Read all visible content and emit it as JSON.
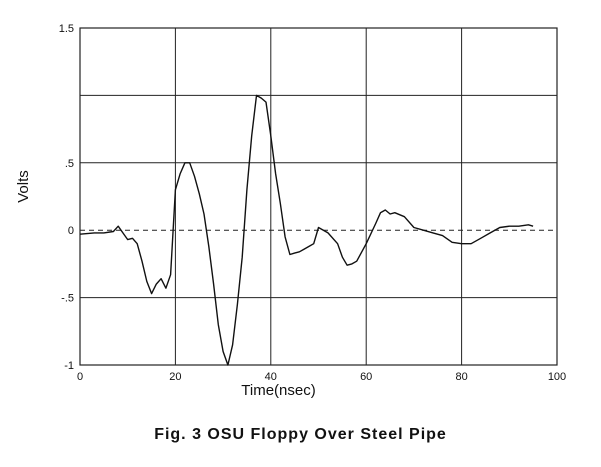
{
  "chart_data": {
    "type": "line",
    "title": "",
    "xlabel": "Time(nsec)",
    "ylabel": "Volts",
    "xlim": [
      0,
      100
    ],
    "ylim": [
      -1,
      1.5
    ],
    "x_ticks": [
      0,
      20,
      40,
      60,
      80,
      100
    ],
    "x_tick_labels": [
      "0",
      "20",
      "40",
      "60",
      "80",
      "100"
    ],
    "y_ticks": [
      -1,
      -0.5,
      0,
      0.5,
      1,
      1.5
    ],
    "y_tick_labels": [
      "-1",
      "-.5",
      "0",
      ".5",
      "",
      "1.5"
    ],
    "grid": true,
    "zero_line_dashed": true,
    "line_color": "#111111",
    "grid_color": "#222222",
    "series": [
      {
        "x": [
          0,
          3,
          5,
          7,
          8,
          9,
          10,
          11,
          12,
          13,
          14,
          15,
          16,
          17,
          18,
          19,
          20,
          21,
          22,
          23,
          24,
          25,
          26,
          27,
          28,
          29,
          30,
          31,
          32,
          33,
          34,
          35,
          36,
          37,
          38,
          39,
          40,
          41,
          42,
          43,
          44,
          45,
          46,
          47,
          48,
          49,
          50,
          52,
          54,
          55,
          56,
          57,
          58,
          60,
          62,
          63,
          64,
          65,
          66,
          68,
          70,
          72,
          74,
          76,
          78,
          80,
          82,
          84,
          86,
          88,
          90,
          92,
          94,
          95
        ],
        "y": [
          -0.03,
          -0.02,
          -0.02,
          -0.01,
          0.03,
          -0.02,
          -0.07,
          -0.06,
          -0.1,
          -0.23,
          -0.38,
          -0.47,
          -0.4,
          -0.36,
          -0.43,
          -0.33,
          0.3,
          0.42,
          0.5,
          0.5,
          0.4,
          0.27,
          0.12,
          -0.12,
          -0.4,
          -0.7,
          -0.9,
          -1.0,
          -0.85,
          -0.55,
          -0.2,
          0.3,
          0.7,
          1.0,
          0.98,
          0.95,
          0.7,
          0.42,
          0.2,
          -0.05,
          -0.18,
          -0.17,
          -0.16,
          -0.14,
          -0.12,
          -0.1,
          0.02,
          -0.02,
          -0.1,
          -0.2,
          -0.26,
          -0.25,
          -0.23,
          -0.1,
          0.05,
          0.13,
          0.15,
          0.12,
          0.13,
          0.1,
          0.02,
          0.0,
          -0.02,
          -0.04,
          -0.09,
          -0.1,
          -0.1,
          -0.06,
          -0.02,
          0.02,
          0.03,
          0.03,
          0.04,
          0.03
        ]
      }
    ]
  },
  "caption": "Fig. 3  OSU Floppy Over Steel Pipe"
}
